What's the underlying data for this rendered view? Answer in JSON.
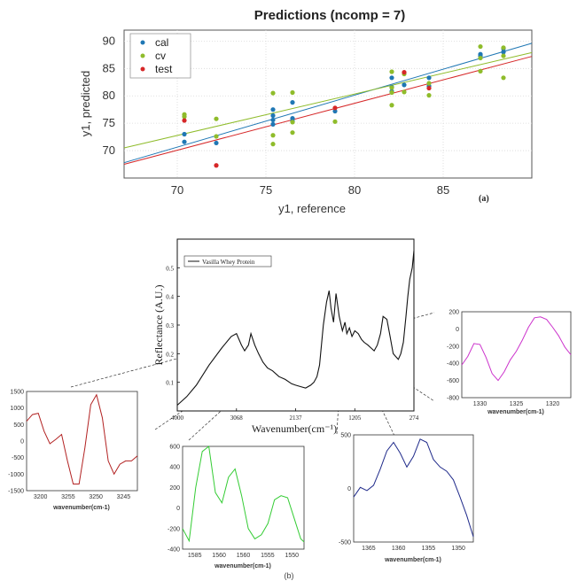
{
  "figure": {
    "panel_a_label": "(a)",
    "panel_b_label": "(b)"
  },
  "chart_data": [
    {
      "id": "predictions",
      "type": "scatter",
      "title": "Predictions (ncomp = 7)",
      "xlabel": "y1, reference",
      "ylabel": "y1, predicted",
      "xlim": [
        67,
        90
      ],
      "ylim": [
        65,
        92
      ],
      "xticks": [
        70,
        75,
        80,
        85
      ],
      "yticks": [
        70,
        75,
        80,
        85,
        90
      ],
      "grid": true,
      "legend": "top-left",
      "series": [
        {
          "name": "cal",
          "color": "#1f77b4",
          "points": [
            [
              70.4,
              71.6
            ],
            [
              70.4,
              73.0
            ],
            [
              72.2,
              71.4
            ],
            [
              75.4,
              74.8
            ],
            [
              75.4,
              75.6
            ],
            [
              75.4,
              76.4
            ],
            [
              75.4,
              77.5
            ],
            [
              76.5,
              75.4
            ],
            [
              76.5,
              75.9
            ],
            [
              76.5,
              78.8
            ],
            [
              78.9,
              77.2
            ],
            [
              82.1,
              80.8
            ],
            [
              82.1,
              81.6
            ],
            [
              82.1,
              83.3
            ],
            [
              82.8,
              82.0
            ],
            [
              84.2,
              81.8
            ],
            [
              84.2,
              83.3
            ],
            [
              87.1,
              87.3
            ],
            [
              87.1,
              87.6
            ],
            [
              88.4,
              88.0
            ],
            [
              88.4,
              88.6
            ]
          ],
          "fit": [
            [
              67,
              67.8
            ],
            [
              90,
              89.6
            ]
          ]
        },
        {
          "name": "cv",
          "color": "#8fbc2b",
          "points": [
            [
              70.4,
              76.2
            ],
            [
              70.4,
              76.6
            ],
            [
              72.2,
              72.6
            ],
            [
              72.2,
              75.8
            ],
            [
              75.4,
              71.2
            ],
            [
              75.4,
              72.8
            ],
            [
              75.4,
              80.5
            ],
            [
              76.5,
              73.3
            ],
            [
              76.5,
              75.2
            ],
            [
              76.5,
              80.6
            ],
            [
              78.9,
              75.3
            ],
            [
              82.1,
              78.3
            ],
            [
              82.1,
              80.6
            ],
            [
              82.1,
              81.5
            ],
            [
              82.1,
              84.4
            ],
            [
              82.8,
              80.7
            ],
            [
              82.8,
              84.0
            ],
            [
              84.2,
              80.1
            ],
            [
              84.2,
              82.3
            ],
            [
              87.1,
              84.5
            ],
            [
              87.1,
              86.9
            ],
            [
              87.1,
              89.0
            ],
            [
              88.4,
              83.3
            ],
            [
              88.4,
              87.3
            ],
            [
              88.4,
              88.8
            ]
          ],
          "fit": [
            [
              67,
              70.5
            ],
            [
              90,
              87.9
            ]
          ]
        },
        {
          "name": "test",
          "color": "#d62728",
          "points": [
            [
              70.4,
              75.5
            ],
            [
              72.2,
              67.3
            ],
            [
              78.9,
              77.8
            ],
            [
              82.8,
              84.3
            ],
            [
              84.2,
              81.4
            ]
          ],
          "fit": [
            [
              67,
              67.5
            ],
            [
              90,
              87.2
            ]
          ]
        }
      ]
    },
    {
      "id": "spectrum",
      "type": "line",
      "legend_entry": "Vasilla Whey Protein",
      "xlabel": "Wavenumber(cm⁻¹)",
      "ylabel": "Reflectance (A.U.)",
      "xlim": [
        4000,
        274
      ],
      "ylim": [
        0,
        0.6
      ],
      "xticks": [
        "4000",
        "3068",
        "2137",
        "1205",
        "274"
      ],
      "yticks": [
        "0.1",
        "0.2",
        "0.3",
        "0.4",
        "0.5"
      ],
      "color": "#111111",
      "x": [
        4000,
        3850,
        3700,
        3500,
        3300,
        3150,
        3068,
        2990,
        2940,
        2880,
        2840,
        2780,
        2720,
        2650,
        2580,
        2500,
        2400,
        2300,
        2200,
        2137,
        2060,
        1980,
        1900,
        1850,
        1800,
        1760,
        1700,
        1650,
        1610,
        1580,
        1540,
        1500,
        1450,
        1400,
        1360,
        1330,
        1290,
        1250,
        1205,
        1150,
        1100,
        1060,
        1000,
        950,
        900,
        850,
        800,
        760,
        700,
        650,
        600,
        560,
        520,
        480,
        440,
        400,
        370,
        340,
        300,
        274
      ],
      "y": [
        0.02,
        0.05,
        0.09,
        0.16,
        0.22,
        0.26,
        0.27,
        0.23,
        0.21,
        0.23,
        0.27,
        0.23,
        0.2,
        0.17,
        0.15,
        0.14,
        0.12,
        0.11,
        0.095,
        0.09,
        0.085,
        0.08,
        0.09,
        0.1,
        0.12,
        0.16,
        0.3,
        0.38,
        0.42,
        0.36,
        0.31,
        0.41,
        0.33,
        0.28,
        0.31,
        0.27,
        0.29,
        0.26,
        0.28,
        0.27,
        0.25,
        0.24,
        0.23,
        0.22,
        0.21,
        0.23,
        0.27,
        0.33,
        0.32,
        0.26,
        0.2,
        0.19,
        0.18,
        0.2,
        0.24,
        0.33,
        0.4,
        0.46,
        0.5,
        0.56
      ]
    },
    {
      "id": "inset-3200",
      "type": "line",
      "color": "#b22222",
      "xlabel": "wavenumber(cm-1)",
      "xlim": [
        3205,
        3243
      ],
      "ylim": [
        -1500,
        1500
      ],
      "xticks": [
        "3200",
        "3255",
        "3250",
        "3245"
      ],
      "yticks": [
        "1500",
        "1000",
        "500",
        "0",
        "-500",
        "-1000",
        "-1500"
      ],
      "x": [
        3205,
        3207,
        3209,
        3211,
        3213,
        3215,
        3217,
        3219,
        3221,
        3223,
        3225,
        3227,
        3229,
        3231,
        3233,
        3235,
        3237,
        3239,
        3241,
        3243
      ],
      "y": [
        600,
        800,
        840,
        300,
        -80,
        50,
        200,
        -600,
        -1300,
        -1300,
        -200,
        1100,
        1400,
        700,
        -600,
        -1000,
        -700,
        -600,
        -600,
        -450
      ]
    },
    {
      "id": "inset-1580",
      "type": "line",
      "color": "#33cc33",
      "xlabel": "wavenumber(cm-1)",
      "xlim": [
        1588,
        1551
      ],
      "ylim": [
        -400,
        600
      ],
      "xticks": [
        "1585",
        "1560",
        "1560",
        "1555",
        "1550"
      ],
      "yticks": [
        "600",
        "400",
        "200",
        "0",
        "-200",
        "-400"
      ],
      "x": [
        1588,
        1586,
        1584,
        1582,
        1580,
        1578,
        1576,
        1574,
        1572,
        1570,
        1568,
        1566,
        1564,
        1562,
        1560,
        1558,
        1556,
        1554,
        1552,
        1551
      ],
      "y": [
        -200,
        -320,
        200,
        550,
        600,
        150,
        50,
        300,
        380,
        120,
        -200,
        -300,
        -260,
        -150,
        80,
        120,
        100,
        -100,
        -300,
        -330
      ]
    },
    {
      "id": "inset-1360",
      "type": "line",
      "color": "#1f2a8a",
      "xlabel": "wavenumber(cm-1)",
      "xlim": [
        1368,
        1350
      ],
      "ylim": [
        -500,
        500
      ],
      "xticks": [
        "1365",
        "1360",
        "1355",
        "1350"
      ],
      "yticks": [
        "500",
        "0",
        "-500"
      ],
      "x": [
        1368,
        1367,
        1366,
        1365,
        1364,
        1363,
        1362,
        1361,
        1360,
        1359,
        1358,
        1357,
        1356,
        1355,
        1354,
        1353,
        1352,
        1351,
        1350
      ],
      "y": [
        -80,
        10,
        -20,
        30,
        180,
        350,
        430,
        330,
        200,
        300,
        460,
        430,
        270,
        200,
        160,
        80,
        -80,
        -250,
        -450
      ]
    },
    {
      "id": "inset-1325",
      "type": "line",
      "color": "#cc33cc",
      "xlabel": "wavenumber(cm-1)",
      "xlim": [
        1333,
        1315
      ],
      "ylim": [
        -800,
        200
      ],
      "xticks": [
        "1330",
        "1325",
        "1320"
      ],
      "yticks": [
        "200",
        "0",
        "-200",
        "-400",
        "-600",
        "-800"
      ],
      "x": [
        1333,
        1332,
        1331,
        1330,
        1329,
        1328,
        1327,
        1326,
        1325,
        1324,
        1323,
        1322,
        1321,
        1320,
        1319,
        1318,
        1317,
        1316,
        1315
      ],
      "y": [
        -420,
        -320,
        -170,
        -180,
        -330,
        -520,
        -600,
        -500,
        -360,
        -260,
        -130,
        20,
        130,
        140,
        110,
        20,
        -80,
        -210,
        -300
      ]
    }
  ]
}
